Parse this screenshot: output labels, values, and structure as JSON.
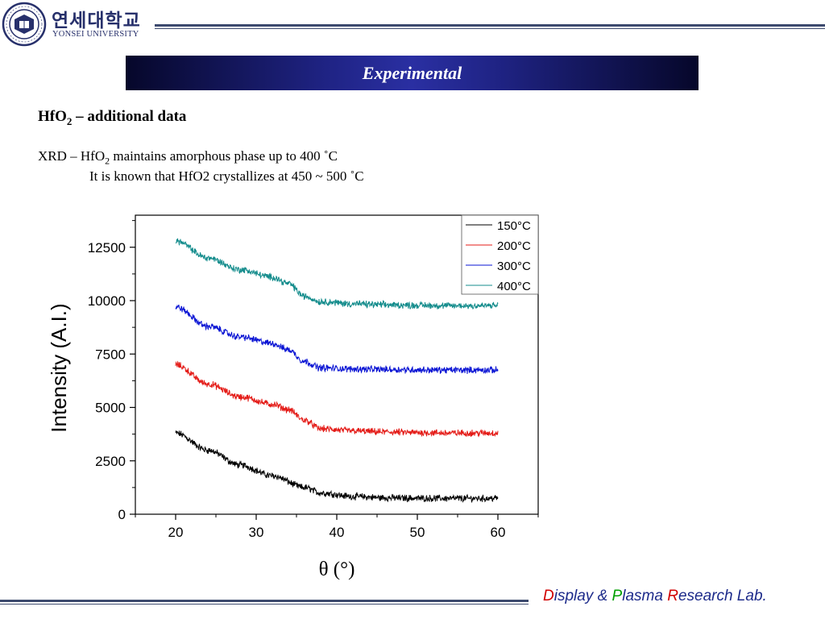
{
  "header": {
    "university_korean": "연세대학교",
    "university_english": "YONSEI UNIVERSITY",
    "banner_title": "Experimental"
  },
  "content": {
    "heading_prefix": "HfO",
    "heading_sub": "2",
    "heading_suffix": " – additional data",
    "line1_prefix": "XRD – HfO",
    "line1_sub": "2",
    "line1_suffix": " maintains amorphous phase up to 400 ˚C",
    "line2": "It is known that HfO2 crystallizes at 450 ~ 500 ˚C"
  },
  "chart_data": {
    "type": "line",
    "title": "",
    "xlabel": "θ (°)",
    "ylabel": "Intensity (A.I.)",
    "xlim": [
      15,
      65
    ],
    "ylim": [
      0,
      14000
    ],
    "xticks": [
      20,
      30,
      40,
      50,
      60
    ],
    "yticks": [
      0,
      2500,
      5000,
      7500,
      10000,
      12500
    ],
    "legend_position": "top-right",
    "series": [
      {
        "name": "150°C",
        "color": "#000000",
        "x": [
          20,
          24,
          28,
          32,
          36,
          38,
          42,
          46,
          50,
          54,
          58,
          60
        ],
        "y": [
          3800,
          3000,
          2300,
          1800,
          1250,
          1000,
          830,
          770,
          750,
          740,
          740,
          750
        ]
      },
      {
        "name": "200°C",
        "color": "#e41b17",
        "x": [
          20,
          24,
          28,
          32,
          34,
          36,
          38,
          42,
          46,
          50,
          54,
          58,
          60
        ],
        "y": [
          7000,
          6100,
          5500,
          5150,
          4900,
          4400,
          4000,
          3900,
          3850,
          3820,
          3800,
          3800,
          3800
        ]
      },
      {
        "name": "300°C",
        "color": "#0a14d4",
        "x": [
          20,
          24,
          28,
          32,
          34,
          36,
          38,
          42,
          46,
          50,
          54,
          58,
          60
        ],
        "y": [
          9700,
          8800,
          8300,
          8000,
          7700,
          7150,
          6850,
          6800,
          6780,
          6760,
          6750,
          6750,
          6750
        ]
      },
      {
        "name": "400°C",
        "color": "#148c8c",
        "x": [
          20,
          24,
          28,
          32,
          34,
          36,
          38,
          42,
          46,
          50,
          54,
          58,
          60
        ],
        "y": [
          12800,
          12000,
          11450,
          11100,
          10800,
          10200,
          9950,
          9850,
          9800,
          9780,
          9760,
          9760,
          9770
        ]
      }
    ]
  },
  "footer": {
    "d_initial": "D",
    "d_rest": "isplay & ",
    "p_initial": "P",
    "p_rest": "lasma ",
    "r_initial": "R",
    "r_rest": "esearch Lab."
  }
}
